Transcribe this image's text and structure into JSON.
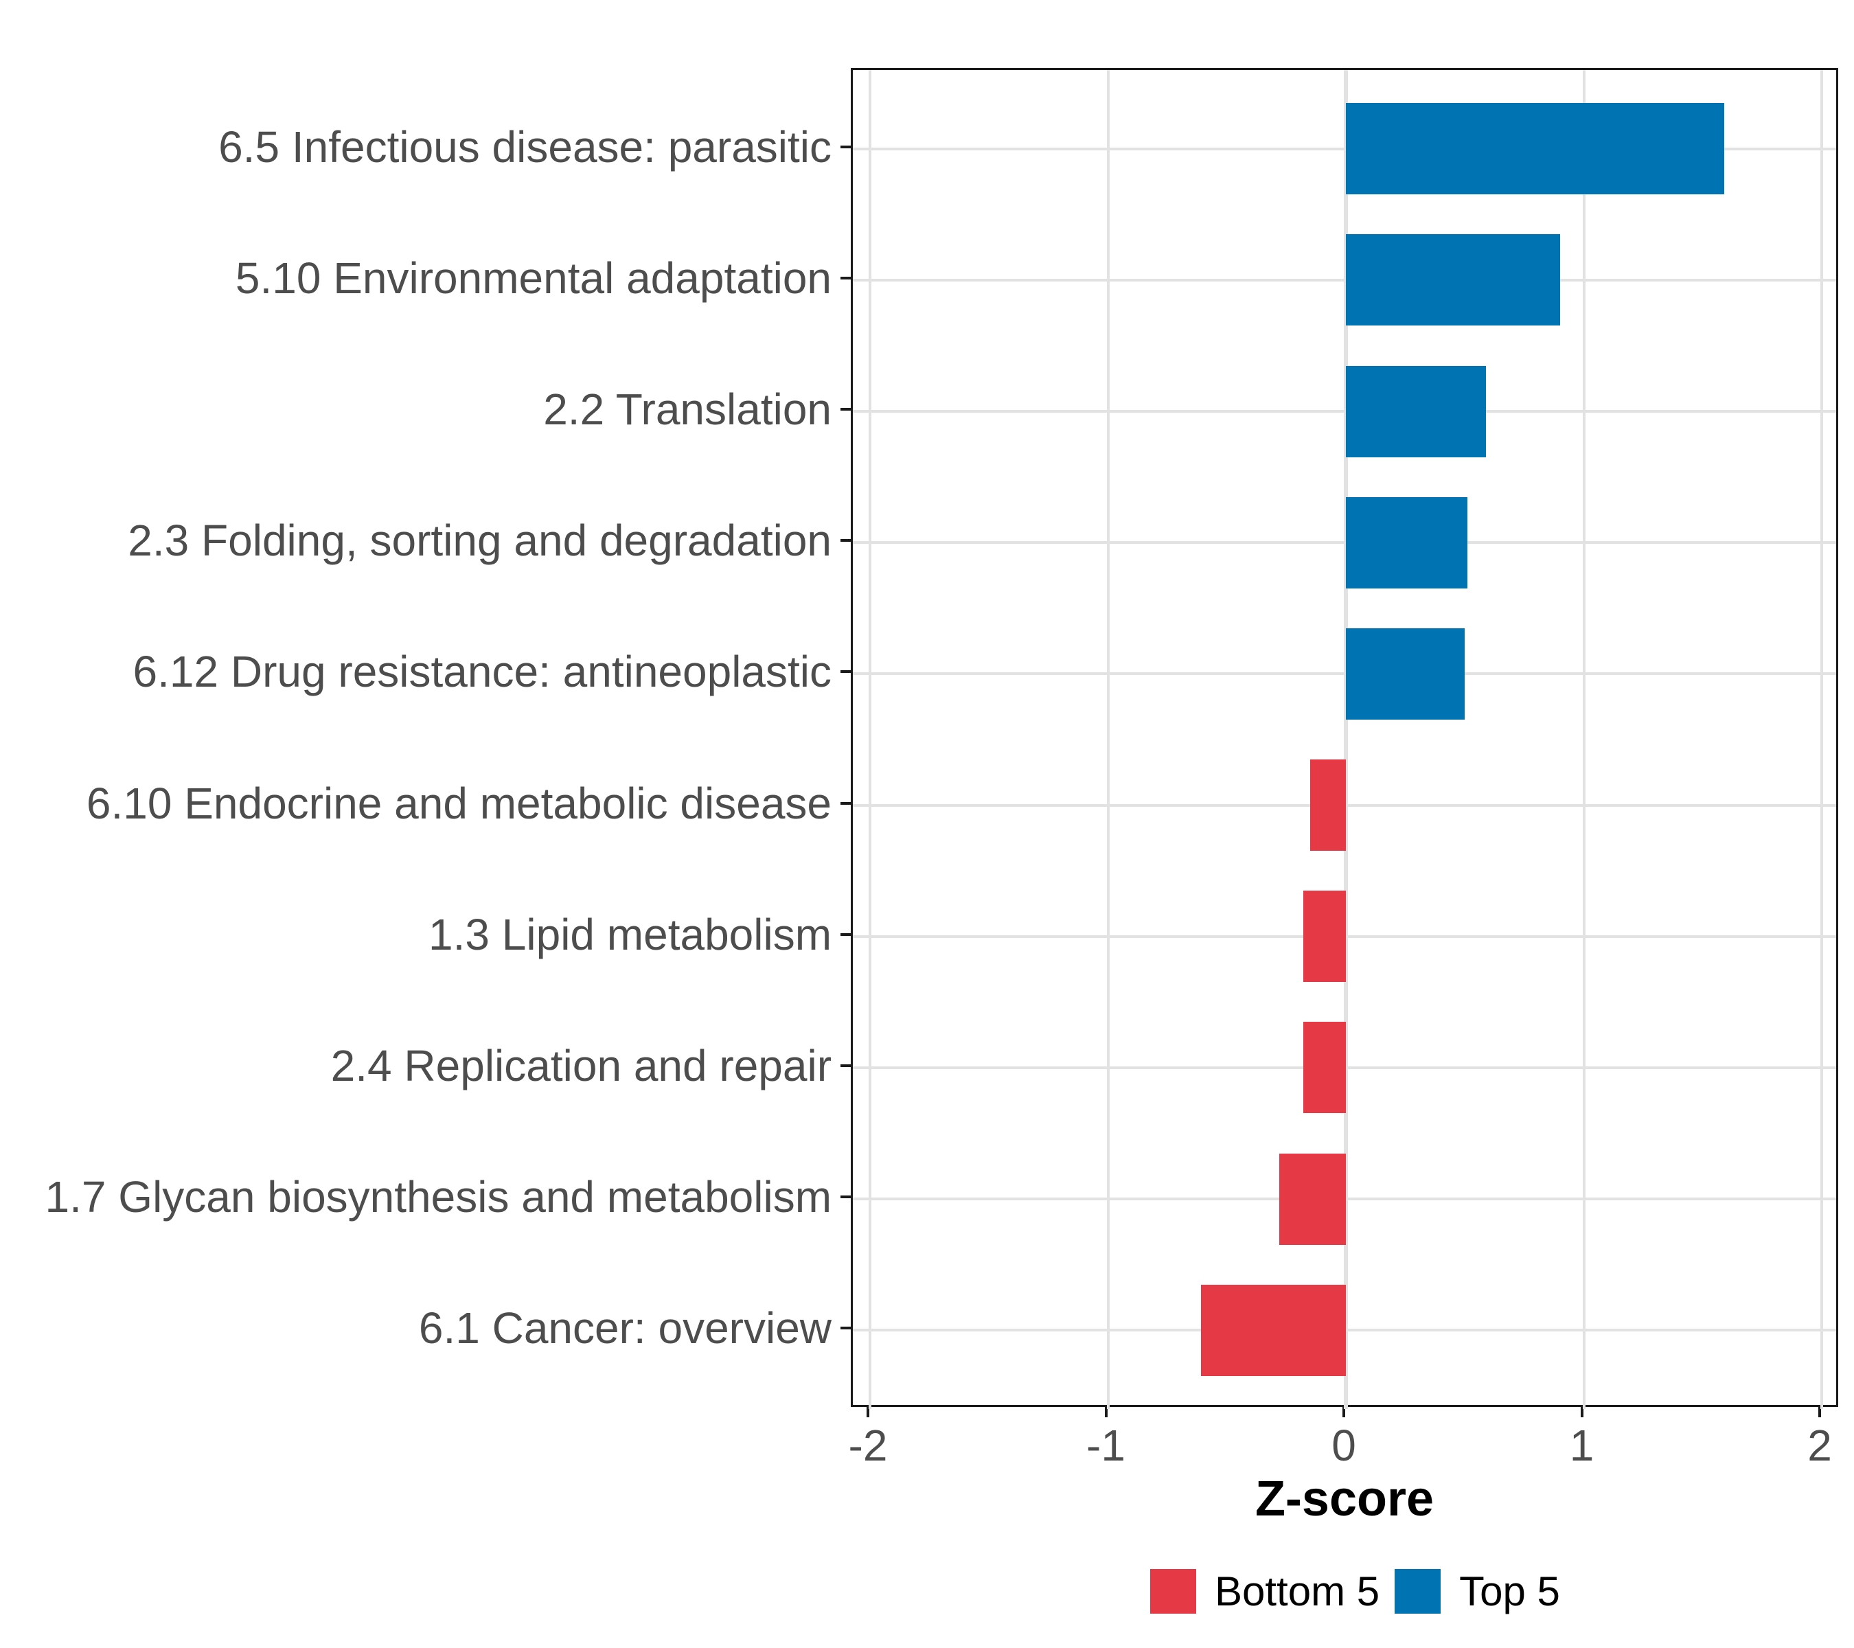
{
  "figure": {
    "background": "#FFFFFF",
    "panel_border_color": "#1A1A1A",
    "gridline_color": "#E2E2E2",
    "axis_text_color": "#4D4D4D"
  },
  "legend": {
    "position": "bottom",
    "entries": [
      {
        "label": "Bottom 5",
        "color": "#E63946"
      },
      {
        "label": "Top 5",
        "color": "#0073B2"
      }
    ]
  },
  "chart_data": {
    "type": "bar",
    "orientation": "horizontal",
    "title": "",
    "xlabel": "Z-score",
    "ylabel": "",
    "xlim": [
      -2.07,
      2.08
    ],
    "x_ticks": [
      -2,
      -1,
      0,
      1,
      2
    ],
    "x_tick_labels": [
      "-2",
      "-1",
      "0",
      "1",
      "2"
    ],
    "grid": "major-only",
    "legend_position": "bottom",
    "categories": [
      "6.5 Infectious disease: parasitic",
      "5.10 Environmental adaptation",
      "2.2 Translation",
      "2.3 Folding, sorting and degradation",
      "6.12 Drug resistance: antineoplastic",
      "6.10 Endocrine and metabolic disease",
      "1.3 Lipid metabolism",
      "2.4 Replication and repair",
      "1.7 Glycan biosynthesis and metabolism",
      "6.1 Cancer: overview"
    ],
    "values": [
      1.59,
      0.9,
      0.59,
      0.51,
      0.5,
      -0.15,
      -0.18,
      -0.18,
      -0.28,
      -0.61
    ],
    "groups": [
      "Top 5",
      "Top 5",
      "Top 5",
      "Top 5",
      "Top 5",
      "Bottom 5",
      "Bottom 5",
      "Bottom 5",
      "Bottom 5",
      "Bottom 5"
    ],
    "group_colors": {
      "Top 5": "#0073B2",
      "Bottom 5": "#E63946"
    }
  }
}
